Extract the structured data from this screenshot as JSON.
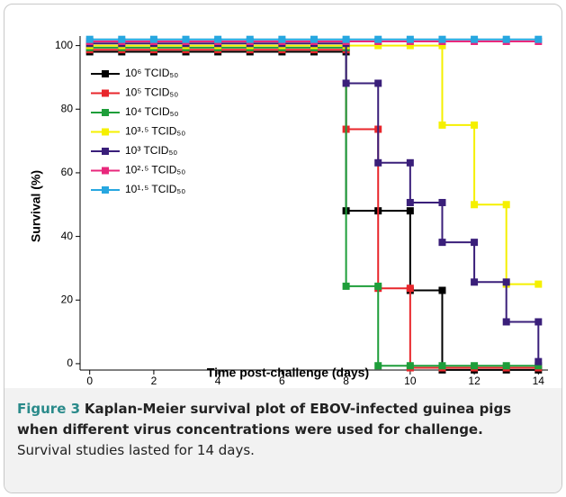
{
  "chart_data": {
    "type": "step",
    "xlabel": "Time post-challenge (days)",
    "ylabel": "Survival (%)",
    "x": [
      0,
      1,
      2,
      3,
      4,
      5,
      6,
      7,
      8,
      9,
      10,
      11,
      12,
      13,
      14
    ],
    "xlim": [
      -0.3,
      14.3
    ],
    "xticks": [
      0,
      2,
      4,
      6,
      8,
      10,
      12,
      14
    ],
    "ylim": [
      -2,
      103
    ],
    "yticks": [
      0,
      20,
      40,
      60,
      80,
      100
    ],
    "legend": "upper left",
    "series": [
      {
        "name": "10⁶ TCID₅₀",
        "color": "#000000",
        "values": [
          100,
          100,
          100,
          100,
          100,
          100,
          100,
          100,
          50,
          50,
          25,
          0,
          0,
          0,
          0
        ]
      },
      {
        "name": "10⁵ TCID₅₀",
        "color": "#e8262b",
        "values": [
          100,
          100,
          100,
          100,
          100,
          100,
          100,
          100,
          75,
          25,
          0,
          0,
          0,
          0,
          0
        ]
      },
      {
        "name": "10⁴ TCID₅₀",
        "color": "#1e9e3a",
        "values": [
          100,
          100,
          100,
          100,
          100,
          100,
          100,
          100,
          25,
          0,
          0,
          0,
          0,
          0,
          0
        ]
      },
      {
        "name": "10³·⁵ TCID₅₀",
        "color": "#f5f000",
        "values": [
          100,
          100,
          100,
          100,
          100,
          100,
          100,
          100,
          100,
          100,
          100,
          75,
          50,
          25,
          25
        ]
      },
      {
        "name": "10³ TCID₅₀",
        "color": "#3a1f7a",
        "values": [
          100,
          100,
          100,
          100,
          100,
          100,
          100,
          100,
          87.5,
          62.5,
          50,
          37.5,
          25,
          12.5,
          0
        ]
      },
      {
        "name": "10²·⁵ TCID₅₀",
        "color": "#e8287c",
        "values": [
          100,
          100,
          100,
          100,
          100,
          100,
          100,
          100,
          100,
          100,
          100,
          100,
          100,
          100,
          100
        ]
      },
      {
        "name": "10¹·⁵ TCID₅₀",
        "color": "#27a7e0",
        "values": [
          100,
          100,
          100,
          100,
          100,
          100,
          100,
          100,
          100,
          100,
          100,
          100,
          100,
          100,
          100
        ]
      }
    ]
  },
  "caption": {
    "label": "Figure 3",
    "title": "Kaplan-Meier survival plot of EBOV-infected guinea pigs when different virus concentrations were used for challenge.",
    "text": "Survival studies lasted for 14 days."
  }
}
